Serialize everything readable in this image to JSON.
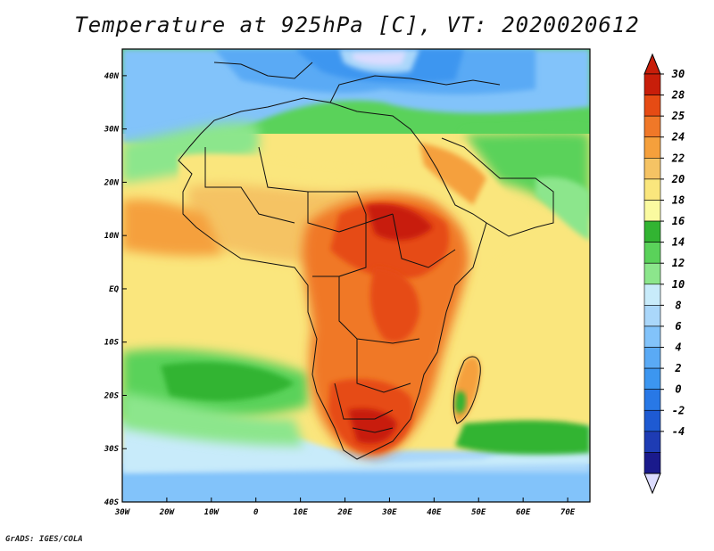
{
  "title": "Temperature at 925hPa [C], VT: 2020020612",
  "footer": "GrADS: IGES/COLA",
  "map": {
    "lon_range": [
      -30,
      75
    ],
    "lat_range": [
      -40,
      45
    ],
    "lon_ticks": [
      {
        "value": -30,
        "label": "30W"
      },
      {
        "value": -20,
        "label": "20W"
      },
      {
        "value": -10,
        "label": "10W"
      },
      {
        "value": 0,
        "label": "0"
      },
      {
        "value": 10,
        "label": "10E"
      },
      {
        "value": 20,
        "label": "20E"
      },
      {
        "value": 30,
        "label": "30E"
      },
      {
        "value": 40,
        "label": "40E"
      },
      {
        "value": 50,
        "label": "50E"
      },
      {
        "value": 60,
        "label": "60E"
      },
      {
        "value": 70,
        "label": "70E"
      }
    ],
    "lat_ticks": [
      {
        "value": 40,
        "label": "40N"
      },
      {
        "value": 30,
        "label": "30N"
      },
      {
        "value": 20,
        "label": "20N"
      },
      {
        "value": 10,
        "label": "10N"
      },
      {
        "value": 0,
        "label": "EQ"
      },
      {
        "value": -10,
        "label": "10S"
      },
      {
        "value": -20,
        "label": "20S"
      },
      {
        "value": -30,
        "label": "30S"
      },
      {
        "value": -40,
        "label": "40S"
      }
    ]
  },
  "colorbar": {
    "levels": [
      "-4",
      "-2",
      "0",
      "2",
      "4",
      "6",
      "8",
      "10",
      "12",
      "14",
      "16",
      "18",
      "20",
      "22",
      "24",
      "25",
      "28",
      "30"
    ],
    "colors": [
      "#1a1a8c",
      "#1e3cb4",
      "#1e5ad2",
      "#2878e6",
      "#3c96f0",
      "#5aaaf5",
      "#82c3fa",
      "#aad7fa",
      "#c8ebfa",
      "#8ce68c",
      "#5ad25a",
      "#32b432",
      "#fafaa0",
      "#fae67d",
      "#f5c364",
      "#f5a03c",
      "#f07828",
      "#e64b14",
      "#c81e0a"
    ],
    "low_color": "#dcdcff"
  }
}
